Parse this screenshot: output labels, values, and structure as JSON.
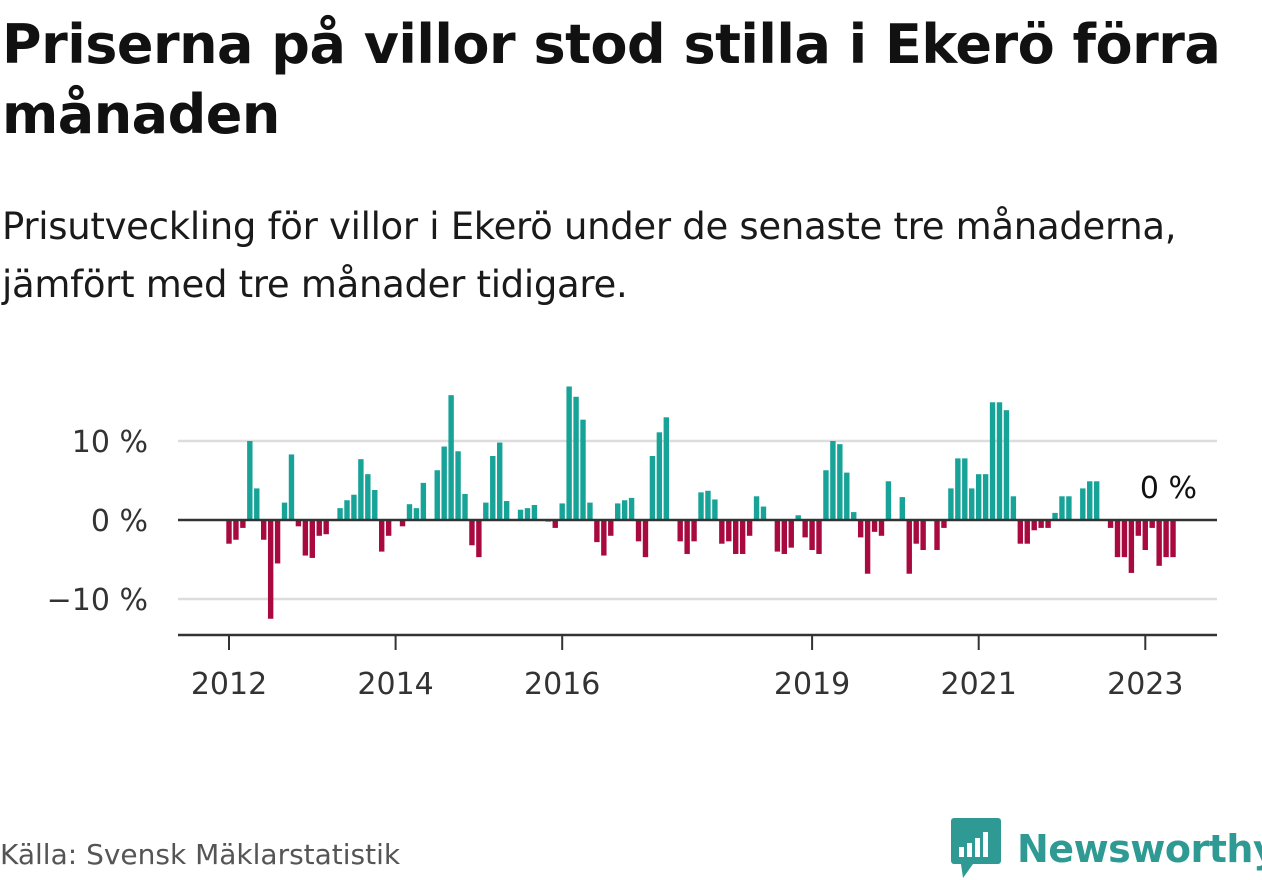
{
  "title": "Priserna på villor stod stilla i Ekerö förra månaden",
  "subtitle": "Prisutveckling för villor i Ekerö under de senaste tre månaderna, jämfört med tre månader tidigare.",
  "source": "Källa: Svensk Mäklarstatistik",
  "brand": {
    "name": "Newsworthy",
    "icon": "newsworthy-logo-icon"
  },
  "colors": {
    "positive": "#17a398",
    "negative": "#a8093f",
    "grid": "#dddddd",
    "axis": "#333333"
  },
  "chart_data": {
    "type": "bar",
    "ylabel": "",
    "xlabel": "",
    "ylim": [
      -14.5,
      17.5
    ],
    "yticks": [
      10,
      0,
      -10
    ],
    "ytick_labels": [
      "10 %",
      "0 %",
      "−10 %"
    ],
    "xtick_labels": [
      "2012",
      "2014",
      "2016",
      "2019",
      "2021",
      "2023"
    ],
    "xtick_positions": [
      2012.0,
      2014.0,
      2016.0,
      2019.0,
      2021.0,
      2023.0
    ],
    "x_start": 2012.0,
    "x_step": 0.08333,
    "annotation": "0 %",
    "values": [
      -3,
      -2.5,
      -1,
      10,
      4,
      -2.5,
      -12.5,
      -5.5,
      2.2,
      8.3,
      -0.8,
      -4.5,
      -4.8,
      -2,
      -1.8,
      0,
      1.5,
      2.5,
      3.2,
      7.7,
      5.8,
      3.8,
      -4,
      -2,
      0,
      -0.8,
      2,
      1.5,
      4.7,
      0,
      6.3,
      9.3,
      15.8,
      8.7,
      3.3,
      -3.2,
      -4.7,
      2.2,
      8.1,
      9.8,
      2.4,
      0,
      1.3,
      1.5,
      1.9,
      0,
      -0.2,
      -1,
      2.1,
      16.9,
      15.6,
      12.7,
      2.2,
      -2.8,
      -4.5,
      -2,
      2.1,
      2.5,
      2.8,
      -2.7,
      -4.7,
      8.1,
      11.1,
      13,
      0,
      -2.7,
      -4.3,
      -2.7,
      3.5,
      3.7,
      2.6,
      -3,
      -2.7,
      -4.3,
      -4.3,
      -2,
      3,
      1.7,
      0,
      -4,
      -4.3,
      -3.5,
      0.6,
      -2.2,
      -3.8,
      -4.3,
      6.3,
      10,
      9.6,
      6,
      1,
      -2.2,
      -6.8,
      -1.5,
      -2,
      4.9,
      0,
      2.9,
      -6.8,
      -3,
      -3.8,
      0,
      -3.8,
      -1,
      4,
      7.8,
      7.8,
      4,
      5.8,
      5.8,
      14.9,
      14.9,
      13.9,
      3,
      -3,
      -3,
      -1.3,
      -1,
      -1,
      0.9,
      3,
      3,
      0,
      4,
      4.9,
      4.9,
      0,
      -1,
      -4.7,
      -4.7,
      -6.7,
      -2,
      -3.8,
      -1,
      -5.8,
      -4.7,
      -4.7,
      0
    ]
  }
}
